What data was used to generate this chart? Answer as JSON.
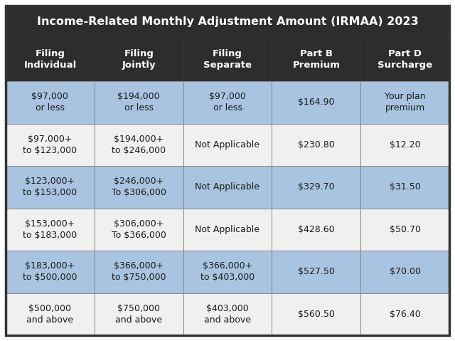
{
  "title": "Income-Related Monthly Adjustment Amount (IRMAA) 2023",
  "columns": [
    "Filing\nIndividual",
    "Filing\nJointly",
    "Filing\nSeparate",
    "Part B\nPremium",
    "Part D\nSurcharge"
  ],
  "rows": [
    [
      "$97,000\nor less",
      "$194,000\nor less",
      "$97,000\nor less",
      "$164.90",
      "Your plan\npremium"
    ],
    [
      "$97,000+\nto $123,000",
      "$194,000+\nto $246,000",
      "Not Applicable",
      "$230.80",
      "$12.20"
    ],
    [
      "$123,000+\nto $153,000",
      "$246,000+\nTo $306,000",
      "Not Applicable",
      "$329.70",
      "$31.50"
    ],
    [
      "$153,000+\nto $183,000",
      "$306,000+\nTo $366,000",
      "Not Applicable",
      "$428.60",
      "$50.70"
    ],
    [
      "$183,000+\nto $500,000",
      "$366,000+\nto $750,000",
      "$366,000+\nto $403,000",
      "$527.50",
      "$70.00"
    ],
    [
      "$500,000\nand above",
      "$750,000\nand above",
      "$403,000\nand above",
      "$560.50",
      "$76.40"
    ]
  ],
  "header_bg": "#2d2d2d",
  "header_text": "#ffffff",
  "title_bg": "#2d2d2d",
  "title_text": "#ffffff",
  "row_color_blue": "#a8c4e0",
  "row_color_white": "#f0f0f0",
  "outer_border": "#333333",
  "cell_border": "#888888",
  "title_fontsize": 11.5,
  "header_fontsize": 9.5,
  "cell_fontsize": 9.0,
  "row_bg_pattern": [
    "blue",
    "white",
    "blue",
    "white",
    "blue",
    "white"
  ]
}
